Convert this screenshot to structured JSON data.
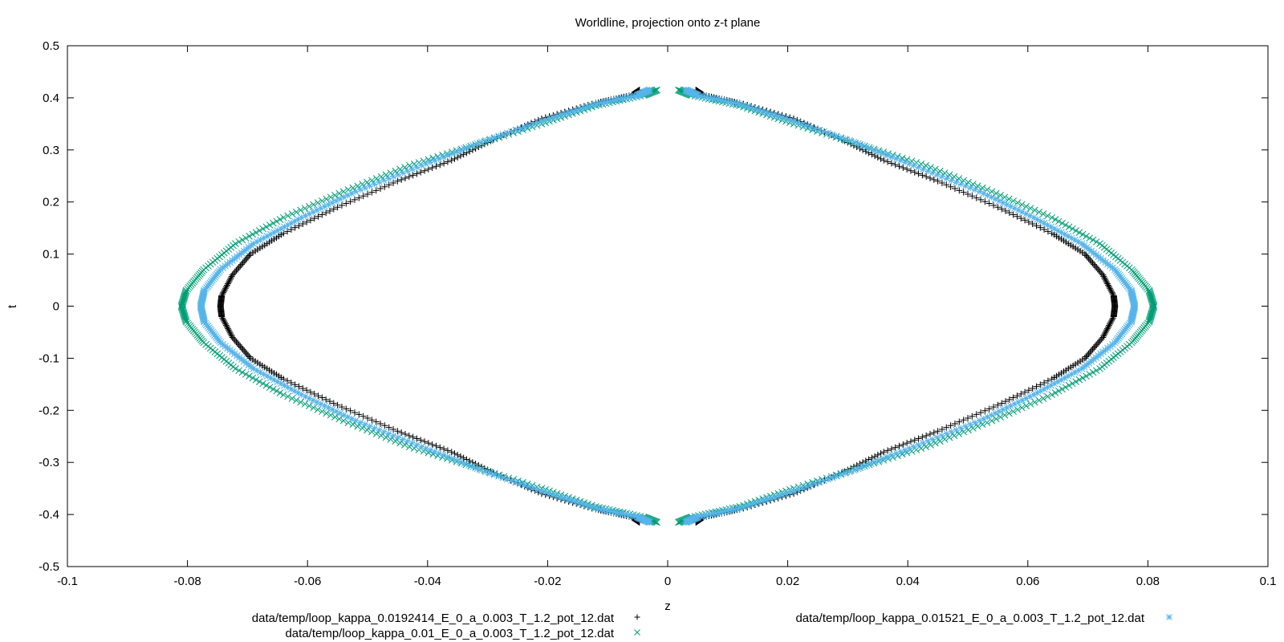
{
  "chart_data": {
    "type": "scatter",
    "title": "Worldline, projection onto z-t plane",
    "xlabel": "z",
    "ylabel": "t",
    "xlim": [
      -0.1,
      0.1
    ],
    "ylim": [
      -0.5,
      0.5
    ],
    "xticks": [
      "-0.1",
      "-0.08",
      "-0.06",
      "-0.04",
      "-0.02",
      "0",
      "0.02",
      "0.04",
      "0.06",
      "0.08",
      "0.1"
    ],
    "yticks": [
      "-0.5",
      "-0.4",
      "-0.3",
      "-0.2",
      "-0.1",
      "0",
      "0.1",
      "0.2",
      "0.3",
      "0.4",
      "0.5"
    ],
    "grid": false,
    "legend_position": "bottom",
    "series": [
      {
        "name": "data/temp/loop_kappa_0.0192414_E_0_a_0.003_T_1.2_pot_12.dat",
        "color": "#000000",
        "marker": "+",
        "points": [
          [
            0.0047,
            0.415
          ],
          [
            0.006,
            0.405
          ],
          [
            0.012,
            0.39
          ],
          [
            0.021,
            0.36
          ],
          [
            0.029,
            0.32
          ],
          [
            0.036,
            0.28
          ],
          [
            0.045,
            0.24
          ],
          [
            0.055,
            0.19
          ],
          [
            0.064,
            0.14
          ],
          [
            0.0695,
            0.1
          ],
          [
            0.0725,
            0.06
          ],
          [
            0.0743,
            0.02
          ],
          [
            0.0745,
            0.0
          ],
          [
            0.0743,
            -0.02
          ],
          [
            0.0725,
            -0.06
          ],
          [
            0.0695,
            -0.1
          ],
          [
            0.064,
            -0.14
          ],
          [
            0.055,
            -0.19
          ],
          [
            0.045,
            -0.24
          ],
          [
            0.036,
            -0.28
          ],
          [
            0.029,
            -0.32
          ],
          [
            0.021,
            -0.36
          ],
          [
            0.012,
            -0.39
          ],
          [
            0.006,
            -0.405
          ],
          [
            0.0047,
            -0.415
          ],
          [
            -0.0047,
            -0.415
          ],
          [
            -0.006,
            -0.405
          ],
          [
            -0.012,
            -0.39
          ],
          [
            -0.021,
            -0.36
          ],
          [
            -0.029,
            -0.32
          ],
          [
            -0.036,
            -0.28
          ],
          [
            -0.045,
            -0.24
          ],
          [
            -0.055,
            -0.19
          ],
          [
            -0.064,
            -0.14
          ],
          [
            -0.0695,
            -0.1
          ],
          [
            -0.0725,
            -0.06
          ],
          [
            -0.0743,
            -0.02
          ],
          [
            -0.0745,
            0.0
          ],
          [
            -0.0743,
            0.02
          ],
          [
            -0.0725,
            0.06
          ],
          [
            -0.0695,
            0.1
          ],
          [
            -0.064,
            0.14
          ],
          [
            -0.055,
            0.19
          ],
          [
            -0.045,
            0.24
          ],
          [
            -0.036,
            0.28
          ],
          [
            -0.029,
            0.32
          ],
          [
            -0.021,
            0.36
          ],
          [
            -0.012,
            0.39
          ],
          [
            -0.006,
            0.405
          ],
          [
            -0.0047,
            0.415
          ]
        ]
      },
      {
        "name": "data/temp/loop_kappa_0.01_E_0_a_0.003_T_1.2_pot_12.dat",
        "color": "#009e73",
        "marker": "x",
        "points": [
          [
            0.0018,
            0.415
          ],
          [
            0.004,
            0.405
          ],
          [
            0.012,
            0.385
          ],
          [
            0.021,
            0.35
          ],
          [
            0.032,
            0.31
          ],
          [
            0.043,
            0.27
          ],
          [
            0.054,
            0.22
          ],
          [
            0.064,
            0.17
          ],
          [
            0.072,
            0.12
          ],
          [
            0.0773,
            0.07
          ],
          [
            0.0802,
            0.03
          ],
          [
            0.081,
            0.0
          ],
          [
            0.0802,
            -0.03
          ],
          [
            0.0773,
            -0.07
          ],
          [
            0.072,
            -0.12
          ],
          [
            0.064,
            -0.17
          ],
          [
            0.054,
            -0.22
          ],
          [
            0.043,
            -0.27
          ],
          [
            0.032,
            -0.31
          ],
          [
            0.021,
            -0.35
          ],
          [
            0.012,
            -0.385
          ],
          [
            0.004,
            -0.405
          ],
          [
            0.0018,
            -0.415
          ],
          [
            -0.0018,
            -0.415
          ],
          [
            -0.004,
            -0.405
          ],
          [
            -0.012,
            -0.385
          ],
          [
            -0.021,
            -0.35
          ],
          [
            -0.032,
            -0.31
          ],
          [
            -0.043,
            -0.27
          ],
          [
            -0.054,
            -0.22
          ],
          [
            -0.064,
            -0.17
          ],
          [
            -0.072,
            -0.12
          ],
          [
            -0.0773,
            -0.07
          ],
          [
            -0.0802,
            -0.03
          ],
          [
            -0.081,
            0.0
          ],
          [
            -0.0802,
            0.03
          ],
          [
            -0.0773,
            0.07
          ],
          [
            -0.072,
            0.12
          ],
          [
            -0.064,
            0.17
          ],
          [
            -0.054,
            0.22
          ],
          [
            -0.043,
            0.27
          ],
          [
            -0.032,
            0.31
          ],
          [
            -0.021,
            0.35
          ],
          [
            -0.012,
            0.385
          ],
          [
            -0.004,
            0.405
          ],
          [
            -0.0018,
            0.415
          ]
        ]
      },
      {
        "name": "data/temp/loop_kappa_0.01521_E_0_a_0.003_T_1.2_pot_12.dat",
        "color": "#56b4e9",
        "marker": "*",
        "points": [
          [
            0.003,
            0.415
          ],
          [
            0.005,
            0.405
          ],
          [
            0.012,
            0.388
          ],
          [
            0.021,
            0.355
          ],
          [
            0.031,
            0.315
          ],
          [
            0.041,
            0.27
          ],
          [
            0.052,
            0.22
          ],
          [
            0.061,
            0.17
          ],
          [
            0.069,
            0.12
          ],
          [
            0.0745,
            0.07
          ],
          [
            0.0772,
            0.03
          ],
          [
            0.0778,
            0.0
          ],
          [
            0.0772,
            -0.03
          ],
          [
            0.0745,
            -0.07
          ],
          [
            0.069,
            -0.12
          ],
          [
            0.061,
            -0.17
          ],
          [
            0.052,
            -0.22
          ],
          [
            0.041,
            -0.27
          ],
          [
            0.031,
            -0.315
          ],
          [
            0.021,
            -0.355
          ],
          [
            0.012,
            -0.388
          ],
          [
            0.005,
            -0.405
          ],
          [
            0.003,
            -0.415
          ],
          [
            -0.003,
            -0.415
          ],
          [
            -0.005,
            -0.405
          ],
          [
            -0.012,
            -0.388
          ],
          [
            -0.021,
            -0.355
          ],
          [
            -0.031,
            -0.315
          ],
          [
            -0.041,
            -0.27
          ],
          [
            -0.052,
            -0.22
          ],
          [
            -0.061,
            -0.17
          ],
          [
            -0.069,
            -0.12
          ],
          [
            -0.0745,
            -0.07
          ],
          [
            -0.0772,
            -0.03
          ],
          [
            -0.0778,
            0.0
          ],
          [
            -0.0772,
            0.03
          ],
          [
            -0.0745,
            0.07
          ],
          [
            -0.069,
            0.12
          ],
          [
            -0.061,
            0.17
          ],
          [
            -0.052,
            0.22
          ],
          [
            -0.041,
            0.27
          ],
          [
            -0.031,
            0.315
          ],
          [
            -0.021,
            0.355
          ],
          [
            -0.012,
            0.388
          ],
          [
            -0.005,
            0.405
          ],
          [
            -0.003,
            0.415
          ]
        ]
      }
    ]
  }
}
